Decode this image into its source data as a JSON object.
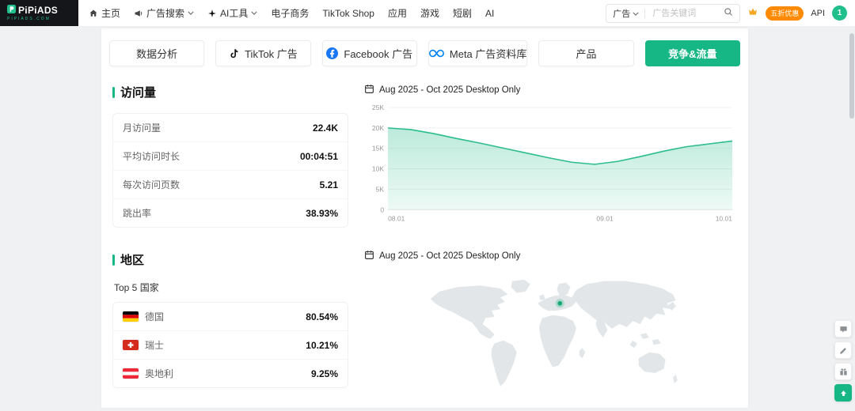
{
  "brand": {
    "name": "PiPiADS",
    "domain": "PIPIADS.COM"
  },
  "topnav": {
    "items": [
      {
        "name": "home",
        "label": "主页",
        "icon": "home-icon"
      },
      {
        "name": "ad-search",
        "label": "广告搜索",
        "icon": "ad-search-icon",
        "dropdown": true
      },
      {
        "name": "ai-tools",
        "label": "AI工具",
        "icon": "ai-tools-icon",
        "dropdown": true
      },
      {
        "name": "ecommerce",
        "label": "电子商务"
      },
      {
        "name": "tiktok-shop",
        "label": "TikTok Shop"
      },
      {
        "name": "apps",
        "label": "应用"
      },
      {
        "name": "games",
        "label": "游戏"
      },
      {
        "name": "short-drama",
        "label": "短剧"
      },
      {
        "name": "ai",
        "label": "AI"
      }
    ]
  },
  "topbar_right": {
    "search_category": "广告",
    "search_placeholder": "广告关键词",
    "promo_badge": "五折优惠",
    "api_label": "API",
    "avatar_text": "1"
  },
  "tabs": [
    {
      "name": "data-analysis",
      "label": "数据分析"
    },
    {
      "name": "tiktok-ads",
      "label": "TikTok 广告",
      "icon": "tiktok-icon"
    },
    {
      "name": "facebook-ads",
      "label": "Facebook 广告",
      "icon": "facebook-icon"
    },
    {
      "name": "meta-library",
      "label": "Meta 广告资料库",
      "icon": "meta-icon"
    },
    {
      "name": "products",
      "label": "产品"
    },
    {
      "name": "competition-traffic",
      "label": "竞争&流量",
      "active": true
    }
  ],
  "visits": {
    "title": "访问量",
    "rows": [
      {
        "label": "月访问量",
        "value": "22.4K"
      },
      {
        "label": "平均访问时长",
        "value": "00:04:51"
      },
      {
        "label": "每次访问页数",
        "value": "5.21"
      },
      {
        "label": "跳出率",
        "value": "38.93%"
      }
    ]
  },
  "region": {
    "title": "地区",
    "subtitle": "Top 5 国家",
    "rows": [
      {
        "flag": "de",
        "country": "德国",
        "value": "80.54%"
      },
      {
        "flag": "ch",
        "country": "瑞士",
        "value": "10.21%"
      },
      {
        "flag": "at",
        "country": "奥地利",
        "value": "9.25%"
      }
    ]
  },
  "chart_section": {
    "date_label": "Aug 2025 - Oct 2025 Desktop Only"
  },
  "map_section": {
    "date_label": "Aug 2025 - Oct 2025 Desktop Only",
    "marker_country": "德国"
  },
  "chart_data": {
    "type": "area",
    "title": "Aug 2025 - Oct 2025 Desktop Only",
    "x_tick_labels": [
      "08.01",
      "09.01",
      "10.01"
    ],
    "x_tick_pos": [
      0,
      0.63,
      1
    ],
    "y_tick_labels": [
      "0",
      "5K",
      "10K",
      "15K",
      "20K",
      "25K"
    ],
    "y_tick_values": [
      0,
      5000,
      10000,
      15000,
      20000,
      25000
    ],
    "ylim": [
      0,
      25000
    ],
    "series": [
      {
        "name": "访问量",
        "values": [
          20000,
          19600,
          18600,
          17400,
          16300,
          15100,
          13900,
          12700,
          11600,
          11100,
          11800,
          13000,
          14300,
          15400,
          16100,
          16800
        ]
      }
    ],
    "color": "#2bbd8e",
    "grid": true,
    "legend": false
  },
  "floating_buttons": [
    "support-chat-icon",
    "feedback-icon",
    "gift-icon",
    "back-to-top-icon"
  ],
  "colors": {
    "accent": "#16b685",
    "chart": "#2bbd8e",
    "promo": "#ff8a00",
    "facebook": "#1877f2",
    "meta": "#0082fb"
  }
}
